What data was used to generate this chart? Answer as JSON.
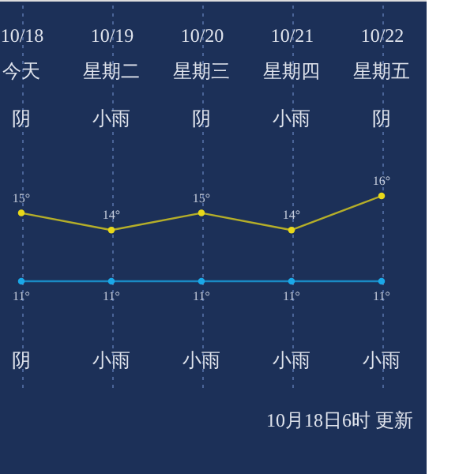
{
  "chart_data": {
    "type": "line",
    "categories": [
      "10/18",
      "10/19",
      "10/20",
      "10/21",
      "10/22"
    ],
    "series": [
      {
        "color": "#e8d81a",
        "values": [
          15,
          14,
          15,
          14,
          16
        ],
        "value_labels": [
          "15°",
          "14°",
          "15°",
          "14°",
          "16°"
        ]
      },
      {
        "color": "#1aa8e8",
        "values": [
          11,
          11,
          11,
          11,
          11
        ],
        "value_labels": [
          "11°",
          "11°",
          "11°",
          "11°",
          "11°"
        ]
      }
    ],
    "tick_labels": "x",
    "grid": "x",
    "marker": "circle",
    "line_style": "solid",
    "annotations": [
      "今天",
      "星期二",
      "星期三",
      "星期四",
      "星期五",
      "阴",
      "小雨",
      "阴",
      "小雨",
      "阴",
      "阴",
      "小雨",
      "小雨",
      "小雨",
      "小雨",
      "10月18日6时 更新"
    ]
  }
}
